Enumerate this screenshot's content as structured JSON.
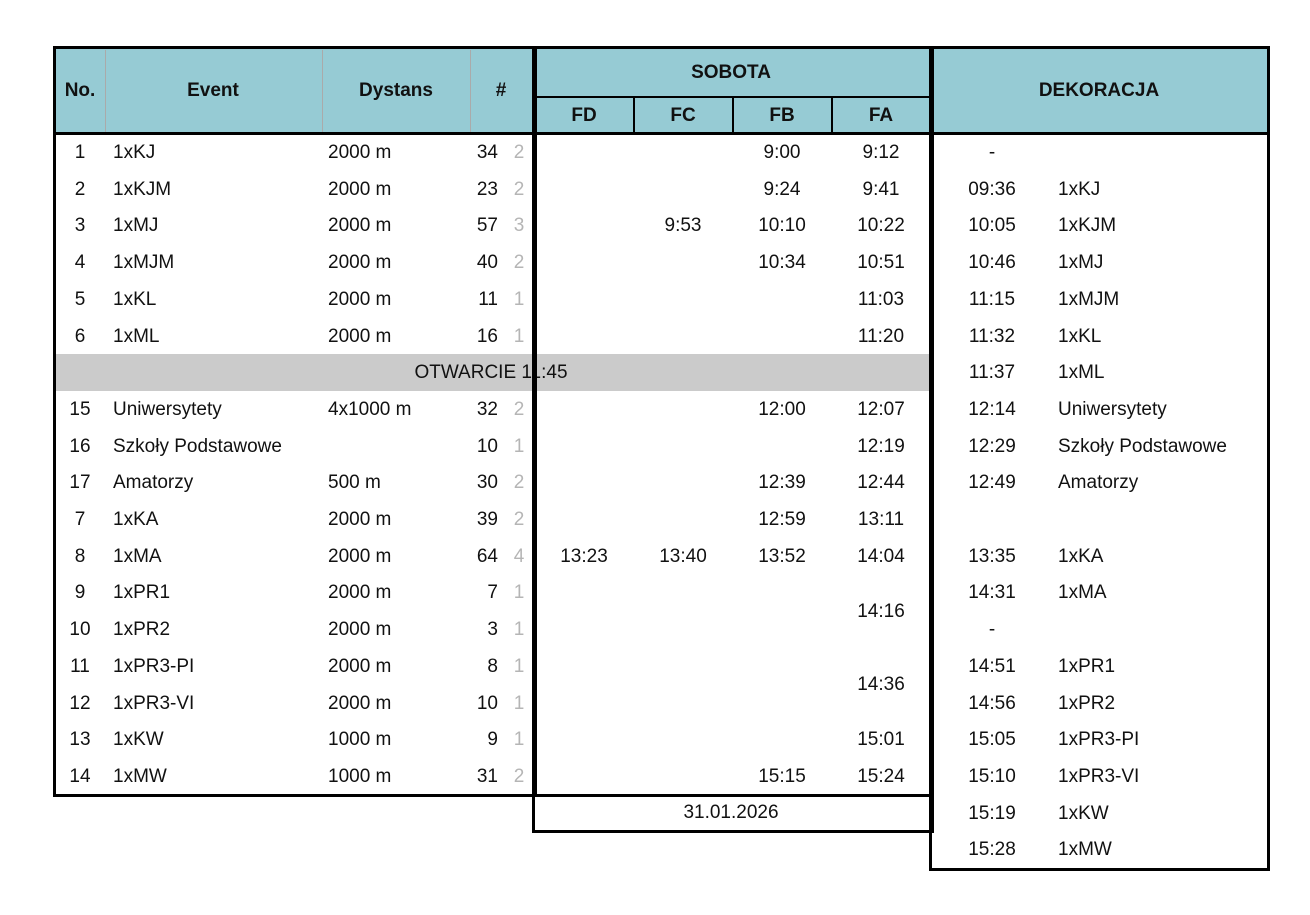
{
  "header": {
    "no": "No.",
    "event": "Event",
    "distance": "Dystans",
    "count": "#",
    "day": "SOBOTA",
    "fd": "FD",
    "fc": "FC",
    "fb": "FB",
    "fa": "FA",
    "decoration": "DEKORACJA"
  },
  "colors": {
    "header_bg": "#96cbd4",
    "break_bg": "#cbcbcb",
    "secondary_text": "#b5b5b5"
  },
  "rows": [
    {
      "no": "1",
      "event": "1xKJ",
      "distance": "2000 m",
      "count": "34",
      "sub": "2",
      "fd": "",
      "fc": "",
      "fb": "9:00",
      "fa": "9:12"
    },
    {
      "no": "2",
      "event": "1xKJM",
      "distance": "2000 m",
      "count": "23",
      "sub": "2",
      "fd": "",
      "fc": "",
      "fb": "9:24",
      "fa": "9:41"
    },
    {
      "no": "3",
      "event": "1xMJ",
      "distance": "2000 m",
      "count": "57",
      "sub": "3",
      "fd": "",
      "fc": "9:53",
      "fb": "10:10",
      "fa": "10:22"
    },
    {
      "no": "4",
      "event": "1xMJM",
      "distance": "2000 m",
      "count": "40",
      "sub": "2",
      "fd": "",
      "fc": "",
      "fb": "10:34",
      "fa": "10:51"
    },
    {
      "no": "5",
      "event": "1xKL",
      "distance": "2000 m",
      "count": "11",
      "sub": "1",
      "fd": "",
      "fc": "",
      "fb": "",
      "fa": "11:03"
    },
    {
      "no": "6",
      "event": "1xML",
      "distance": "2000 m",
      "count": "16",
      "sub": "1",
      "fd": "",
      "fc": "",
      "fb": "",
      "fa": "11:20"
    },
    {
      "break": "OTWARCIE 11:45"
    },
    {
      "no": "15",
      "event": "Uniwersytety",
      "distance": "4x1000 m",
      "count": "32",
      "sub": "2",
      "fd": "",
      "fc": "",
      "fb": "12:00",
      "fa": "12:07"
    },
    {
      "no": "16",
      "event": "Szkoły Podstawowe",
      "distance": "",
      "count": "10",
      "sub": "1",
      "fd": "",
      "fc": "",
      "fb": "",
      "fa": "12:19"
    },
    {
      "no": "17",
      "event": "Amatorzy",
      "distance": "500 m",
      "count": "30",
      "sub": "2",
      "fd": "",
      "fc": "",
      "fb": "12:39",
      "fa": "12:44"
    },
    {
      "no": "7",
      "event": "1xKA",
      "distance": "2000 m",
      "count": "39",
      "sub": "2",
      "fd": "",
      "fc": "",
      "fb": "12:59",
      "fa": "13:11"
    },
    {
      "no": "8",
      "event": "1xMA",
      "distance": "2000 m",
      "count": "64",
      "sub": "4",
      "fd": "13:23",
      "fc": "13:40",
      "fb": "13:52",
      "fa": "14:04"
    },
    {
      "no": "9",
      "event": "1xPR1",
      "distance": "2000 m",
      "count": "7",
      "sub": "1",
      "fd": "",
      "fc": "",
      "fb": "",
      "fa": "14:16",
      "fa_span": 2
    },
    {
      "no": "10",
      "event": "1xPR2",
      "distance": "2000 m",
      "count": "3",
      "sub": "1",
      "fd": "",
      "fc": "",
      "fb": "",
      "fa": ""
    },
    {
      "no": "11",
      "event": "1xPR3-PI",
      "distance": "2000 m",
      "count": "8",
      "sub": "1",
      "fd": "",
      "fc": "",
      "fb": "",
      "fa": "14:36",
      "fa_span": 2
    },
    {
      "no": "12",
      "event": "1xPR3-VI",
      "distance": "2000 m",
      "count": "10",
      "sub": "1",
      "fd": "",
      "fc": "",
      "fb": "",
      "fa": ""
    },
    {
      "no": "13",
      "event": "1xKW",
      "distance": "1000 m",
      "count": "9",
      "sub": "1",
      "fd": "",
      "fc": "",
      "fb": "",
      "fa": "15:01"
    },
    {
      "no": "14",
      "event": "1xMW",
      "distance": "1000 m",
      "count": "31",
      "sub": "2",
      "fd": "",
      "fc": "",
      "fb": "15:15",
      "fa": "15:24"
    }
  ],
  "date": "31.01.2026",
  "decoration": [
    {
      "time": "-",
      "event": ""
    },
    {
      "time": "09:36",
      "event": "1xKJ"
    },
    {
      "time": "10:05",
      "event": "1xKJM"
    },
    {
      "time": "10:46",
      "event": "1xMJ"
    },
    {
      "time": "11:15",
      "event": "1xMJM"
    },
    {
      "time": "11:32",
      "event": "1xKL"
    },
    {
      "time": "11:37",
      "event": "1xML"
    },
    {
      "time": "12:14",
      "event": "Uniwersytety"
    },
    {
      "time": "12:29",
      "event": "Szkoły Podstawowe"
    },
    {
      "time": "12:49",
      "event": "Amatorzy"
    },
    {
      "time": "",
      "event": ""
    },
    {
      "time": "13:35",
      "event": "1xKA"
    },
    {
      "time": "14:31",
      "event": "1xMA"
    },
    {
      "time": "-",
      "event": ""
    },
    {
      "time": "14:51",
      "event": "1xPR1"
    },
    {
      "time": "14:56",
      "event": "1xPR2"
    },
    {
      "time": "15:05",
      "event": "1xPR3-PI"
    },
    {
      "time": "15:10",
      "event": "1xPR3-VI"
    },
    {
      "time": "15:19",
      "event": "1xKW"
    },
    {
      "time": "15:28",
      "event": "1xMW"
    }
  ]
}
